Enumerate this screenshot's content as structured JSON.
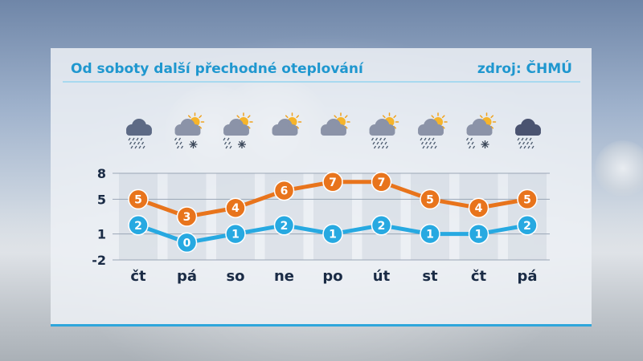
{
  "header": {
    "title": "Od soboty další přechodné oteplování",
    "source": "zdroj: ČHMÚ"
  },
  "colors": {
    "max_series": "#e8741c",
    "min_series": "#27a9e1",
    "accent": "#1f97cf"
  },
  "icons": [
    "heavy-rain-cloud-icon",
    "sun-cloud-rain-snow-icon",
    "sun-cloud-rain-snow-icon",
    "sun-cloud-icon",
    "sun-cloud-icon",
    "sun-cloud-rain-icon",
    "sun-cloud-rain-icon",
    "sun-cloud-rain-snow-icon",
    "dark-cloud-rain-icon"
  ],
  "chart_data": {
    "type": "line",
    "categories": [
      "čt",
      "pá",
      "so",
      "ne",
      "po",
      "út",
      "st",
      "čt",
      "pá"
    ],
    "series": [
      {
        "values": [
          5,
          3,
          4,
          6,
          7,
          7,
          5,
          4,
          5
        ]
      },
      {
        "values": [
          2,
          0,
          1,
          2,
          1,
          2,
          1,
          1,
          2
        ]
      }
    ],
    "ylim": [
      -2,
      8
    ],
    "y_ticks": [
      "8",
      "5",
      "1",
      "-2"
    ],
    "grid": true
  }
}
